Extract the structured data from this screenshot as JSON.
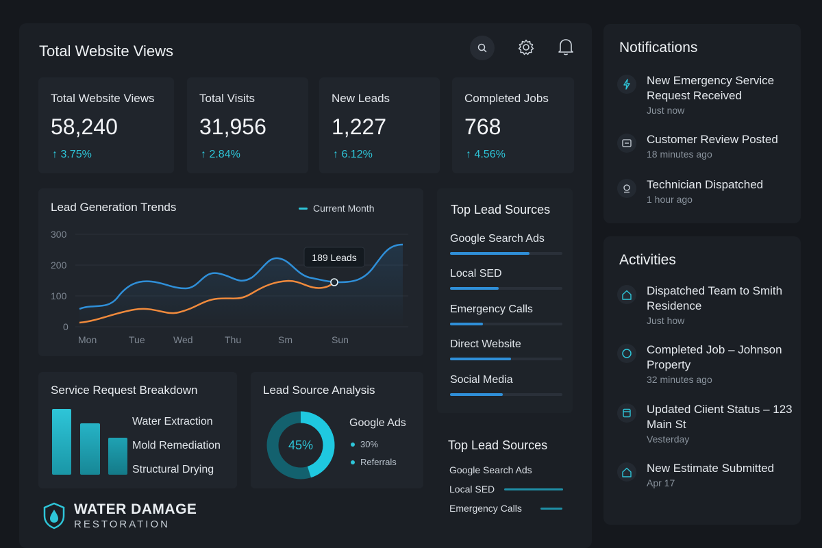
{
  "header": {
    "title": "Total Website Views"
  },
  "toolbar": {
    "icons": [
      "search-icon",
      "gear-icon",
      "bell-icon"
    ]
  },
  "stats": [
    {
      "label": "Total Website Views",
      "value": "58,240",
      "delta": "↑ 3.75%"
    },
    {
      "label": "Total Visits",
      "value": "31,956",
      "delta": "↑ 2.84%"
    },
    {
      "label": "New Leads",
      "value": "1,227",
      "delta": "↑ 6.12%"
    },
    {
      "label": "Completed Jobs",
      "value": "768",
      "delta": "↑ 4.56%"
    }
  ],
  "lead_chart": {
    "title": "Lead Generation Trends",
    "legend": "Current Month",
    "tooltip": "189 Leads",
    "y_ticks": [
      "300",
      "200",
      "100",
      "0"
    ],
    "x_ticks": [
      "Mon",
      "Tue",
      "Wed",
      "Thu",
      "Sm",
      "Sun"
    ]
  },
  "top_sources": {
    "title": "Top Lead Sources",
    "items": [
      {
        "label": "Google Search Ads",
        "level": 0.71
      },
      {
        "label": "Local SED",
        "level": 0.43
      },
      {
        "label": "Emergency Calls",
        "level": 0.29
      },
      {
        "label": "Direct Website",
        "level": 0.54
      },
      {
        "label": "Social Media",
        "level": 0.47
      }
    ]
  },
  "top_sources_2": {
    "title": "Top Lead Sources",
    "items": [
      "Google Search Ads",
      "Local SED",
      "Emergency Calls"
    ]
  },
  "breakdown": {
    "title": "Service Request Breakdown",
    "items": [
      "Water Extraction",
      "Mold Remediation",
      "Structural Drying"
    ]
  },
  "analysis": {
    "title": "Lead Source Analysis",
    "center": "45%",
    "share": 0.45,
    "label": "Google Ads",
    "rows": [
      "30%",
      "Referrals"
    ]
  },
  "logo": {
    "line1": "WATER DAMAGE",
    "line2": "RESTORATION"
  },
  "notifications": {
    "title": "Notifications",
    "items": [
      {
        "icon": "lightning-icon",
        "text": "New Emergency Service Request Received",
        "time": "Just now"
      },
      {
        "icon": "review-icon",
        "text": "Customer Review Posted",
        "time": "18 minutes ago"
      },
      {
        "icon": "technician-icon",
        "text": "Technician Dispatched",
        "time": "1 hour ago"
      }
    ]
  },
  "activities": {
    "title": "Activities",
    "items": [
      {
        "icon": "home-icon",
        "text": "Dispatched Team to Smith Residence",
        "time": "Just how"
      },
      {
        "icon": "circle-icon",
        "text": "Completed Job – Johnson Property",
        "time": "32 minutes ago"
      },
      {
        "icon": "document-icon",
        "text": "Updated Ciient Status – 123 Main St",
        "time": "Vesterday"
      },
      {
        "icon": "home-icon",
        "text": "New Estimate Submitted",
        "time": "Apr 17"
      }
    ]
  },
  "colors": {
    "accent": "#2ec5d8",
    "blue": "#2f8fd8",
    "orange": "#f08a3c",
    "bg": "#15181d"
  }
}
